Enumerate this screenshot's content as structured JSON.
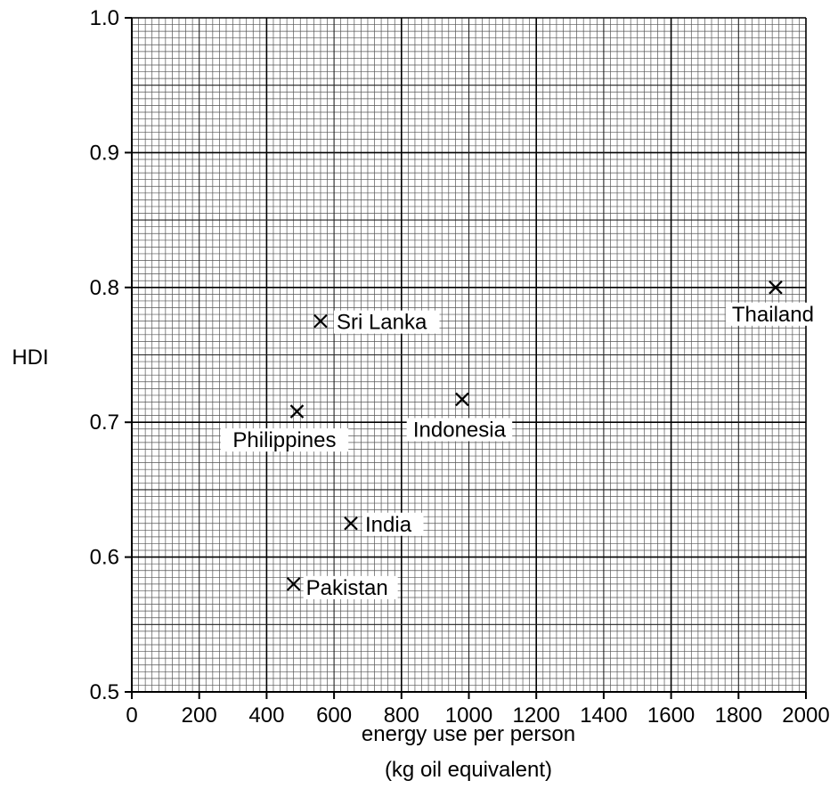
{
  "chart_data": {
    "type": "scatter",
    "xlabel_lines": [
      "energy use per person",
      "(kg oil equivalent)"
    ],
    "ylabel": "HDI",
    "xlim": [
      0,
      2000
    ],
    "ylim": [
      0.5,
      1.0
    ],
    "xticks": [
      "0",
      "200",
      "400",
      "600",
      "800",
      "1000",
      "1200",
      "1400",
      "1600",
      "1800",
      "2000"
    ],
    "yticks": [
      "0.5",
      "0.6",
      "0.7",
      "0.8",
      "0.9",
      "1.0"
    ],
    "grid": true,
    "marker": "x",
    "points": [
      {
        "label": "Sri Lanka",
        "x": 560,
        "y": 0.775
      },
      {
        "label": "Thailand",
        "x": 1910,
        "y": 0.8
      },
      {
        "label": "Philippines",
        "x": 490,
        "y": 0.708
      },
      {
        "label": "Indonesia",
        "x": 980,
        "y": 0.717
      },
      {
        "label": "India",
        "x": 650,
        "y": 0.625
      },
      {
        "label": "Pakistan",
        "x": 480,
        "y": 0.58
      }
    ]
  }
}
